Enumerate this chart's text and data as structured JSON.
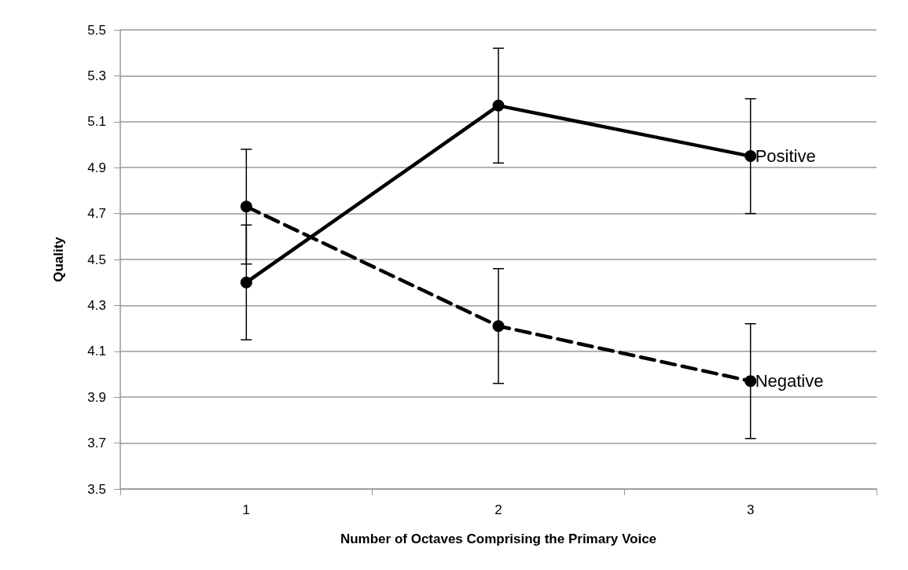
{
  "chart_data": {
    "type": "line",
    "xlabel": "Number of Octaves Comprising the Primary Voice",
    "ylabel": "Quality",
    "categories": [
      "1",
      "2",
      "3"
    ],
    "series": [
      {
        "name": "Positive",
        "color": "#000000",
        "line_style": "solid",
        "values": [
          4.4,
          5.17,
          4.95
        ],
        "errors": [
          0.25,
          0.25,
          0.25
        ]
      },
      {
        "name": "Negative",
        "color": "#000000",
        "line_style": "dashed",
        "values": [
          4.73,
          4.21,
          3.97
        ],
        "errors": [
          0.25,
          0.25,
          0.25
        ]
      }
    ],
    "ylim": [
      3.5,
      5.5
    ],
    "yticks": [
      3.5,
      3.7,
      3.9,
      4.1,
      4.3,
      4.5,
      4.7,
      4.9,
      5.1,
      5.3,
      5.5
    ],
    "grid": "y",
    "marker": "circle"
  }
}
